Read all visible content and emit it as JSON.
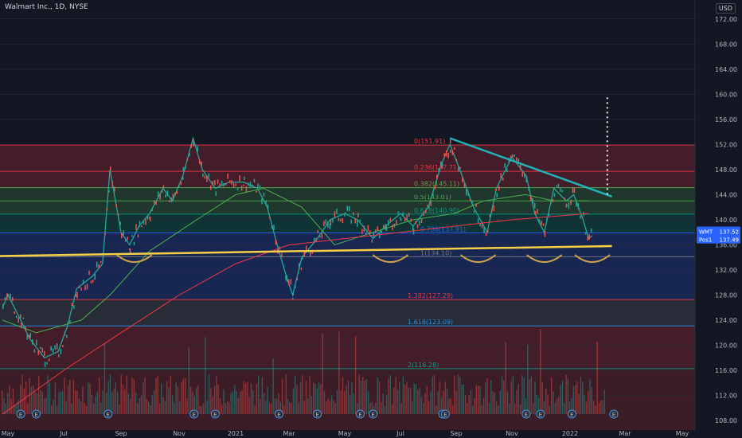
{
  "header": {
    "title": "Walmart Inc., 1D, NYSE",
    "currency": "USD"
  },
  "chart_data": {
    "type": "line",
    "title": "Walmart Inc., 1D, NYSE",
    "xlabel": "",
    "ylabel": "",
    "ylim": [
      107,
      174
    ],
    "y_ticks": [
      108,
      112,
      116,
      120,
      124,
      128,
      132,
      136,
      140,
      144,
      148,
      152,
      156,
      160,
      164,
      168,
      172
    ],
    "x_tick_labels": [
      "May",
      "Jul",
      "Sep",
      "Nov",
      "2021",
      "Mar",
      "May",
      "Jul",
      "Sep",
      "Nov",
      "2022",
      "Mar",
      "May"
    ],
    "series": [
      {
        "x": [
          "2020-04-20",
          "2020-05-01",
          "2020-05-15",
          "2020-05-25",
          "2020-06-10",
          "2020-06-25",
          "2020-07-05",
          "2020-07-15",
          "2020-08-01",
          "2020-08-12",
          "2020-08-20",
          "2020-09-01",
          "2020-09-10",
          "2020-09-20",
          "2020-10-01",
          "2020-10-15",
          "2020-10-25",
          "2020-11-05",
          "2020-11-16",
          "2020-11-26",
          "2020-12-10",
          "2020-12-25",
          "2021-01-10",
          "2021-01-25",
          "2021-02-05",
          "2021-02-16",
          "2021-02-26",
          "2021-03-05",
          "2021-03-15",
          "2021-04-01",
          "2021-04-15",
          "2021-05-01",
          "2021-05-15",
          "2021-06-01",
          "2021-06-15",
          "2021-07-01",
          "2021-07-15",
          "2021-08-01",
          "2021-08-16",
          "2021-08-25",
          "2021-09-05",
          "2021-09-20",
          "2021-10-05",
          "2021-10-15",
          "2021-11-01",
          "2021-11-16",
          "2021-11-25",
          "2021-12-05",
          "2021-12-15",
          "2021-12-28",
          "2022-01-05",
          "2022-01-15",
          "2022-01-21",
          "2022-01-25"
        ],
        "values": [
          126,
          128,
          124,
          121,
          118,
          119,
          123,
          129,
          131,
          133,
          148,
          138,
          136,
          139,
          141,
          145,
          143,
          147,
          153,
          148,
          145,
          146,
          146,
          145,
          142,
          136,
          131,
          128,
          134,
          137,
          140,
          141,
          140,
          137,
          139,
          141,
          139,
          142,
          149,
          152,
          148,
          142,
          138,
          145,
          150,
          147,
          141,
          138,
          145,
          143,
          144,
          140,
          137,
          137.49
        ]
      },
      {
        "x": [
          "2020-04-20",
          "2020-06-01",
          "2020-07-20",
          "2020-08-20",
          "2020-10-01",
          "2020-11-20",
          "2021-01-01",
          "2021-02-01",
          "2021-03-15",
          "2021-04-20",
          "2021-06-01",
          "2021-07-15",
          "2021-08-30",
          "2021-10-01",
          "2021-11-15",
          "2021-12-15",
          "2022-01-21"
        ],
        "values": [
          124,
          122,
          124,
          128,
          135,
          140,
          144,
          145,
          142,
          136,
          138,
          140,
          141,
          143,
          144,
          143,
          143
        ]
      },
      {
        "x": [
          "2020-04-20",
          "2020-07-01",
          "2020-09-01",
          "2020-11-01",
          "2021-01-01",
          "2021-03-01",
          "2021-05-01",
          "2021-07-01",
          "2021-09-01",
          "2021-11-01",
          "2022-01-21"
        ],
        "values": [
          109,
          116,
          122,
          128,
          133,
          136,
          137,
          138,
          139,
          140,
          141
        ]
      }
    ],
    "fibonacci": [
      {
        "label": "0(151.91)",
        "value": 151.91,
        "color": "#f23645"
      },
      {
        "label": "0.236(147.71)",
        "value": 147.71,
        "color": "#f23645"
      },
      {
        "label": "0.382(145.11)",
        "value": 145.11,
        "color": "#4caf50"
      },
      {
        "label": "0.5(143.01)",
        "value": 143.01,
        "color": "#4caf50"
      },
      {
        "label": "0.618(140.90)",
        "value": 140.9,
        "color": "#089981"
      },
      {
        "label": "0.786(137.91)",
        "value": 137.91,
        "color": "#2962ff"
      },
      {
        "label": "1(134.10)",
        "value": 134.1,
        "color": "#787b86"
      },
      {
        "label": "1.382(127.29)",
        "value": 127.29,
        "color": "#f23645"
      },
      {
        "label": "1.618(123.09)",
        "value": 123.09,
        "color": "#2196f3"
      },
      {
        "label": "2(116.28)",
        "value": 116.28,
        "color": "#089981"
      }
    ],
    "price_tags": [
      {
        "symbol": "WMT",
        "value": "137.52",
        "color": "#2962ff"
      },
      {
        "symbol": "Pos1",
        "value": "137.49",
        "color": "#2962ff"
      }
    ],
    "support_line": {
      "x": [
        "2020-05-01",
        "2022-02-15"
      ],
      "values": [
        134.2,
        135.8
      ],
      "color": "#f7d046"
    },
    "resistance_line": {
      "x": [
        "2021-08-25",
        "2022-02-15"
      ],
      "values": [
        153,
        143.7
      ],
      "color": "#22b1b7"
    },
    "target_projection": {
      "x": "2022-02-10",
      "from": 144,
      "to": 160
    },
    "earnings_markers": [
      "2020-05-15",
      "2020-06-01",
      "2020-08-18",
      "2020-11-17",
      "2020-12-10",
      "2021-02-18",
      "2021-04-01",
      "2021-05-18",
      "2021-06-01",
      "2021-08-17",
      "2021-08-20",
      "2021-11-16",
      "2021-12-01",
      "2022-01-03",
      "2022-02-17"
    ]
  }
}
